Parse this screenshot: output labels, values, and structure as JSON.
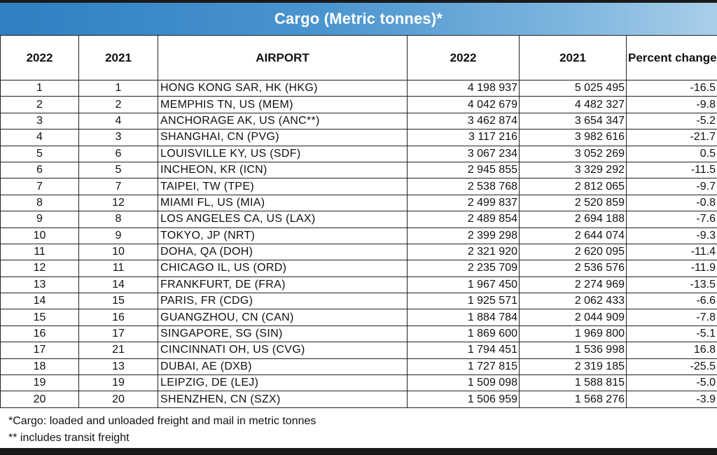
{
  "title": "Cargo (Metric tonnes)*",
  "headers": [
    "2022",
    "2021",
    "AIRPORT",
    "2022",
    "2021",
    "Percent change"
  ],
  "rows": [
    {
      "rank2022": "1",
      "rank2021": "1",
      "airport": "HONG KONG SAR, HK (HKG)",
      "cargo2022": "4 198 937",
      "cargo2021": "5 025 495",
      "pct": "-16.5"
    },
    {
      "rank2022": "2",
      "rank2021": "2",
      "airport": "MEMPHIS TN, US (MEM)",
      "cargo2022": "4 042 679",
      "cargo2021": "4 482 327",
      "pct": "-9.8"
    },
    {
      "rank2022": "3",
      "rank2021": "4",
      "airport": "ANCHORAGE AK, US (ANC**)",
      "cargo2022": "3 462 874",
      "cargo2021": "3 654 347",
      "pct": "-5.2"
    },
    {
      "rank2022": "4",
      "rank2021": "3",
      "airport": "SHANGHAI, CN (PVG)",
      "cargo2022": "3 117 216",
      "cargo2021": "3 982 616",
      "pct": "-21.7"
    },
    {
      "rank2022": "5",
      "rank2021": "6",
      "airport": "LOUISVILLE KY, US (SDF)",
      "cargo2022": "3 067 234",
      "cargo2021": "3 052 269",
      "pct": "0.5"
    },
    {
      "rank2022": "6",
      "rank2021": "5",
      "airport": "INCHEON, KR (ICN)",
      "cargo2022": "2 945 855",
      "cargo2021": "3 329 292",
      "pct": "-11.5"
    },
    {
      "rank2022": "7",
      "rank2021": "7",
      "airport": "TAIPEI, TW (TPE)",
      "cargo2022": "2 538 768",
      "cargo2021": "2 812 065",
      "pct": "-9.7"
    },
    {
      "rank2022": "8",
      "rank2021": "12",
      "airport": "MIAMI FL, US (MIA)",
      "cargo2022": "2 499 837",
      "cargo2021": "2 520 859",
      "pct": "-0.8"
    },
    {
      "rank2022": "9",
      "rank2021": "8",
      "airport": "LOS ANGELES CA, US (LAX)",
      "cargo2022": "2 489 854",
      "cargo2021": "2 694 188",
      "pct": "-7.6"
    },
    {
      "rank2022": "10",
      "rank2021": "9",
      "airport": "TOKYO, JP (NRT)",
      "cargo2022": "2 399 298",
      "cargo2021": "2 644 074",
      "pct": "-9.3"
    },
    {
      "rank2022": "11",
      "rank2021": "10",
      "airport": "DOHA, QA (DOH)",
      "cargo2022": "2 321 920",
      "cargo2021": "2 620 095",
      "pct": "-11.4"
    },
    {
      "rank2022": "12",
      "rank2021": "11",
      "airport": "CHICAGO IL, US (ORD)",
      "cargo2022": "2 235 709",
      "cargo2021": "2 536 576",
      "pct": "-11.9"
    },
    {
      "rank2022": "13",
      "rank2021": "14",
      "airport": "FRANKFURT, DE (FRA)",
      "cargo2022": "1 967 450",
      "cargo2021": "2 274 969",
      "pct": "-13.5"
    },
    {
      "rank2022": "14",
      "rank2021": "15",
      "airport": "PARIS, FR (CDG)",
      "cargo2022": "1 925 571",
      "cargo2021": "2 062 433",
      "pct": "-6.6"
    },
    {
      "rank2022": "15",
      "rank2021": "16",
      "airport": "GUANGZHOU, CN (CAN)",
      "cargo2022": "1 884 784",
      "cargo2021": "2 044 909",
      "pct": "-7.8"
    },
    {
      "rank2022": "16",
      "rank2021": "17",
      "airport": "SINGAPORE, SG (SIN)",
      "cargo2022": "1 869 600",
      "cargo2021": "1 969 800",
      "pct": "-5.1"
    },
    {
      "rank2022": "17",
      "rank2021": "21",
      "airport": "CINCINNATI OH, US (CVG)",
      "cargo2022": "1 794 451",
      "cargo2021": "1 536 998",
      "pct": "16.8"
    },
    {
      "rank2022": "18",
      "rank2021": "13",
      "airport": "DUBAI, AE (DXB)",
      "cargo2022": "1 727 815",
      "cargo2021": "2 319 185",
      "pct": "-25.5"
    },
    {
      "rank2022": "19",
      "rank2021": "19",
      "airport": "LEIPZIG, DE (LEJ)",
      "cargo2022": "1 509 098",
      "cargo2021": "1 588 815",
      "pct": "-5.0"
    },
    {
      "rank2022": "20",
      "rank2021": "20",
      "airport": "SHENZHEN, CN (SZX)",
      "cargo2022": "1 506 959",
      "cargo2021": "1 568 276",
      "pct": "-3.9"
    }
  ],
  "footnotes": [
    "*Cargo: loaded and unloaded freight and mail in metric tonnes",
    "** includes transit freight"
  ],
  "colors": {
    "banner_start": "#2f7fc1",
    "banner_end": "#a9cfea",
    "text": "#111111",
    "border": "#222222"
  }
}
